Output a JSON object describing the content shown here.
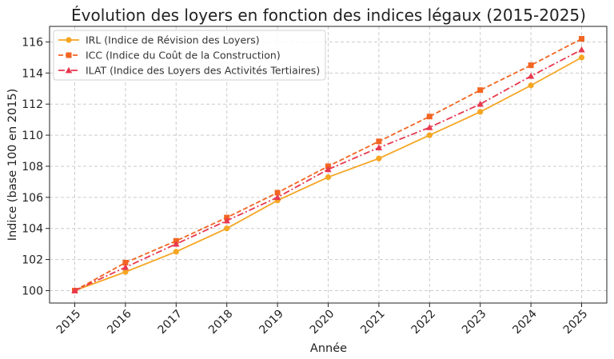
{
  "chart_data": {
    "type": "line",
    "title": "Évolution des loyers en fonction des indices légaux (2015-2025)",
    "xlabel": "Année",
    "ylabel": "Indice (base 100 en 2015)",
    "x": [
      "2015",
      "2016",
      "2017",
      "2018",
      "2019",
      "2020",
      "2021",
      "2022",
      "2023",
      "2024",
      "2025"
    ],
    "ylim": [
      99.2,
      117.0
    ],
    "yticks": [
      100,
      102,
      104,
      106,
      108,
      110,
      112,
      114,
      116
    ],
    "grid": true,
    "legend_position": "top-left",
    "series": [
      {
        "name": "IRL (Indice de Révision des Loyers)",
        "color": "#f5a623",
        "dash": "solid",
        "marker": "circle",
        "values": [
          100,
          101.2,
          102.5,
          104.0,
          105.8,
          107.3,
          108.5,
          110.0,
          111.5,
          113.2,
          115.0
        ]
      },
      {
        "name": "ICC (Indice du Coût de la Construction)",
        "color": "#f26522",
        "dash": "dashed",
        "marker": "square",
        "values": [
          100,
          101.8,
          103.2,
          104.7,
          106.3,
          108.0,
          109.6,
          111.2,
          112.9,
          114.5,
          116.2
        ]
      },
      {
        "name": "ILAT (Indice des Loyers des Activités Tertiaires)",
        "color": "#e8384f",
        "dash": "dashdot",
        "marker": "triangle",
        "values": [
          100,
          101.5,
          103.0,
          104.5,
          106.0,
          107.8,
          109.2,
          110.5,
          112.0,
          113.8,
          115.5
        ]
      }
    ]
  }
}
